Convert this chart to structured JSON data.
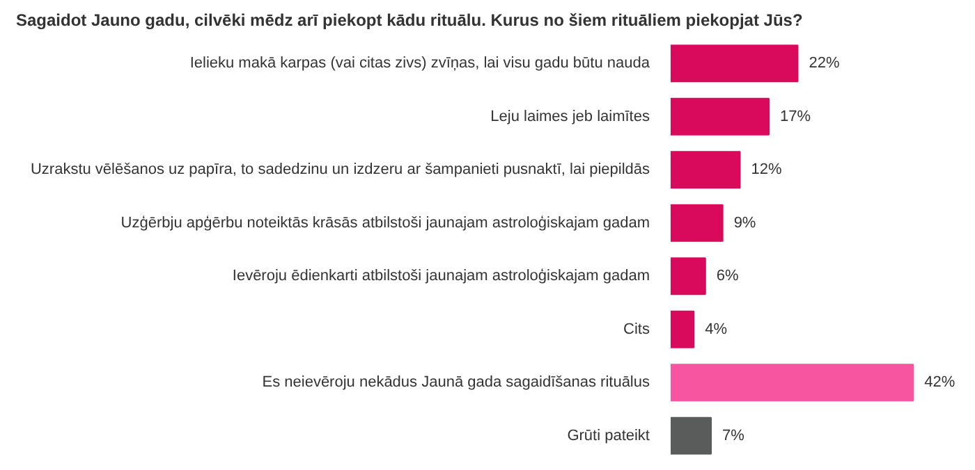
{
  "chart_data": {
    "type": "bar",
    "orientation": "horizontal",
    "title": "Sagaidot Jauno gadu, cilvēki mēdz arī piekopt kādu rituālu. Kurus no šiem rituāliem piekopjat Jūs?",
    "categories": [
      "Ielieku makā karpas (vai citas zivs) zvīņas, lai visu gadu būtu nauda",
      "Leju laimes jeb laimītes",
      "Uzrakstu vēlēšanos uz papīra, to sadedzinu un izdzeru ar šampanieti pusnaktī, lai piepildās",
      "Uzģērbju apģērbu noteiktās krāsās atbilstoši jaunajam astroloģiskajam gadam",
      "Ievēroju ēdienkarti atbilstoši jaunajam astroloģiskajam gadam",
      "Cits",
      "Es neievēroju nekādus Jaunā gada sagaidīšanas rituālus",
      "Grūti pateikt"
    ],
    "values": [
      22,
      17,
      12,
      9,
      6,
      4,
      42,
      7
    ],
    "value_labels": [
      "22%",
      "17%",
      "12%",
      "9%",
      "6%",
      "4%",
      "42%",
      "7%"
    ],
    "colors": [
      "#d9095b",
      "#d9095b",
      "#d9095b",
      "#d9095b",
      "#d9095b",
      "#d9095b",
      "#f7559f",
      "#5a5c5c"
    ],
    "tick_labels": "y",
    "grid": false
  }
}
